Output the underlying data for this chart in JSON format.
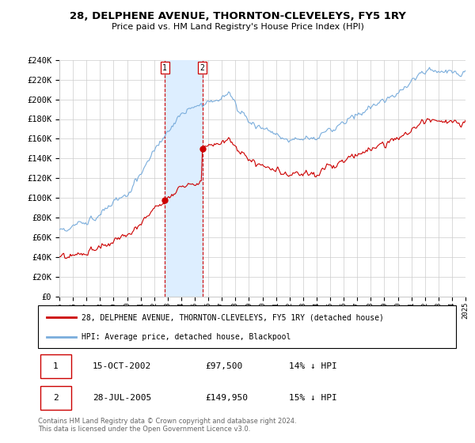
{
  "title": "28, DELPHENE AVENUE, THORNTON-CLEVELEYS, FY5 1RY",
  "subtitle": "Price paid vs. HM Land Registry's House Price Index (HPI)",
  "legend_line1": "28, DELPHENE AVENUE, THORNTON-CLEVELEYS, FY5 1RY (detached house)",
  "legend_line2": "HPI: Average price, detached house, Blackpool",
  "transaction1_date": "15-OCT-2002",
  "transaction1_price": "£97,500",
  "transaction1_hpi": "14% ↓ HPI",
  "transaction2_date": "28-JUL-2005",
  "transaction2_price": "£149,950",
  "transaction2_hpi": "15% ↓ HPI",
  "footer": "Contains HM Land Registry data © Crown copyright and database right 2024.\nThis data is licensed under the Open Government Licence v3.0.",
  "y_min": 0,
  "y_max": 240000,
  "y_ticks": [
    0,
    20000,
    40000,
    60000,
    80000,
    100000,
    120000,
    140000,
    160000,
    180000,
    200000,
    220000,
    240000
  ],
  "hpi_color": "#7aaddc",
  "price_color": "#cc0000",
  "background_color": "#ffffff",
  "grid_color": "#cccccc",
  "shaded_region_color": "#ddeeff",
  "transaction1_x": 2002.79,
  "transaction2_x": 2005.57,
  "x_min": 1995,
  "x_max": 2025
}
